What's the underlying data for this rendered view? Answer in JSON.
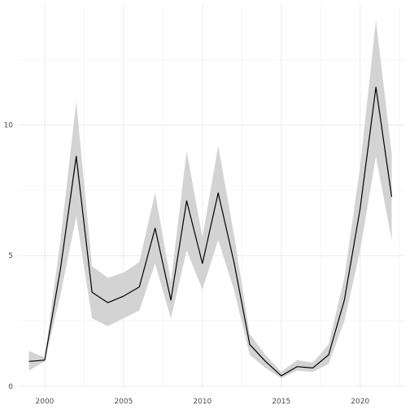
{
  "chart_data": {
    "type": "line",
    "title": "",
    "xlabel": "",
    "ylabel": "",
    "xlim": [
      1998.3,
      2022.8
    ],
    "ylim": [
      -0.1,
      14.6
    ],
    "x_ticks": [
      2000,
      2005,
      2010,
      2015,
      2020
    ],
    "y_ticks": [
      0,
      5,
      10
    ],
    "grid": true,
    "legend": "none",
    "colors": {
      "line": "#000000",
      "ribbon": "#d3d3d3",
      "grid": "#ebebeb",
      "tick_text": "#4d4d4d"
    },
    "series": [
      {
        "x": [
          1999,
          2000,
          2001,
          2002,
          2003,
          2004,
          2005,
          2006,
          2007,
          2008,
          2009,
          2010,
          2011,
          2012,
          2013,
          2014,
          2015,
          2016,
          2017,
          2018,
          2019,
          2020,
          2021,
          2022
        ],
        "values": [
          0.95,
          1.0,
          4.5,
          8.8,
          3.6,
          3.2,
          3.45,
          3.8,
          6.05,
          3.3,
          7.1,
          4.7,
          7.4,
          4.75,
          1.6,
          0.95,
          0.4,
          0.75,
          0.7,
          1.2,
          3.3,
          6.8,
          11.45,
          7.25
        ],
        "lower": [
          0.6,
          0.95,
          3.5,
          6.5,
          2.6,
          2.3,
          2.6,
          2.9,
          4.7,
          2.6,
          5.2,
          3.7,
          5.6,
          3.7,
          1.2,
          0.7,
          0.3,
          0.6,
          0.55,
          0.85,
          2.5,
          5.2,
          8.8,
          5.6
        ],
        "upper": [
          1.35,
          1.1,
          5.6,
          10.9,
          4.6,
          4.15,
          4.35,
          4.75,
          7.4,
          4.0,
          9.0,
          5.7,
          9.2,
          5.8,
          2.0,
          1.2,
          0.55,
          1.0,
          0.9,
          1.6,
          4.15,
          8.4,
          14.0,
          8.9
        ]
      }
    ]
  }
}
